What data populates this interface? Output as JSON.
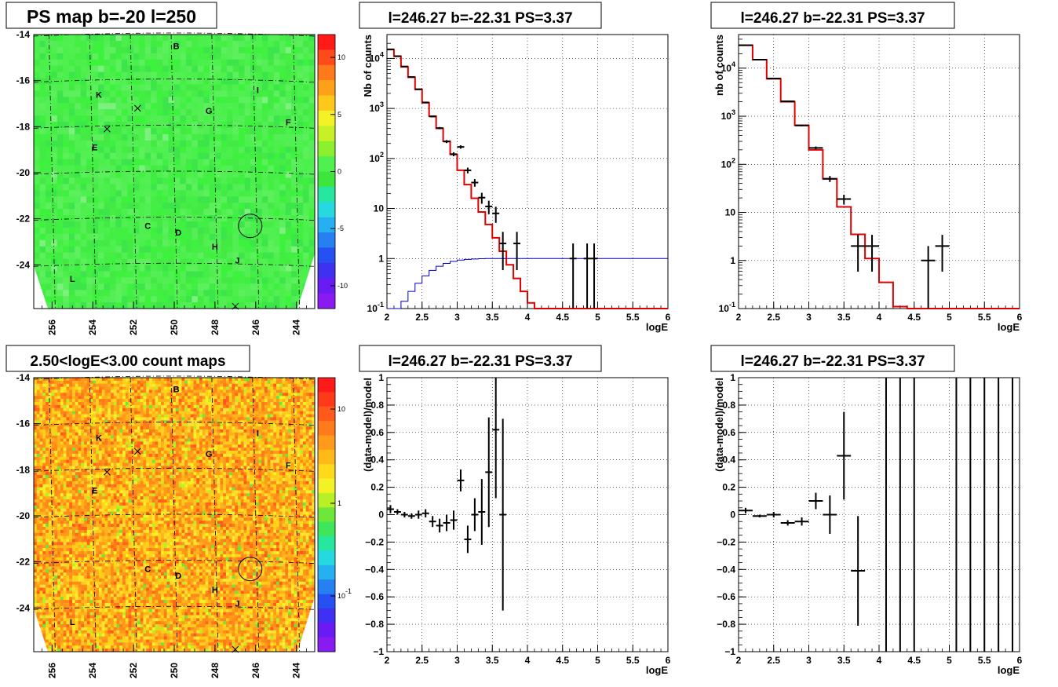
{
  "chart_data": [
    {
      "type": "heatmap",
      "title": "PS map b=-20 l=250",
      "xlabel": "",
      "ylabel": "",
      "xlim": [
        256.9,
        243.1
      ],
      "ylim": [
        -25.9,
        -14.0
      ],
      "x_ticks": [
        "256",
        "254",
        "252",
        "250",
        "248",
        "246",
        "244"
      ],
      "y_ticks": [
        "-14",
        "-16",
        "-18",
        "-20",
        "-22",
        "-24"
      ],
      "colorbar_ticks": [
        "10",
        "5",
        "0",
        "-5",
        "-10"
      ],
      "colorbar_range": [
        -12,
        12
      ],
      "dominant_value": 0,
      "sources": [
        {
          "name": "B",
          "l": 249.9,
          "b": -14.5
        },
        {
          "name": "I",
          "l": 245.9,
          "b": -16.4
        },
        {
          "name": "K",
          "l": 253.7,
          "b": -16.6
        },
        {
          "name": "G",
          "l": 248.3,
          "b": -17.3
        },
        {
          "name": "F",
          "l": 244.4,
          "b": -17.8
        },
        {
          "name": "E",
          "l": 253.9,
          "b": -18.9
        },
        {
          "name": "C",
          "l": 251.3,
          "b": -22.3
        },
        {
          "name": "D",
          "l": 249.8,
          "b": -22.6
        },
        {
          "name": "H",
          "l": 248.0,
          "b": -23.2
        },
        {
          "name": "J",
          "l": 246.9,
          "b": -23.8
        },
        {
          "name": "L",
          "l": 255.0,
          "b": -24.6
        }
      ],
      "crosses": [
        {
          "l": 253.3,
          "b": -18.1
        },
        {
          "l": 251.8,
          "b": -17.2
        },
        {
          "l": 247.0,
          "b": -25.8
        }
      ],
      "circle": {
        "l": 246.27,
        "b": -22.31
      }
    },
    {
      "type": "line",
      "title": "l=246.27 b=-22.31 PS=3.37",
      "xlabel": "logE",
      "ylabel": "Nb of counts",
      "yscale": "log",
      "xlim": [
        2,
        6
      ],
      "ylim": [
        0.1,
        30000
      ],
      "x_ticks": [
        "2",
        "2.5",
        "3",
        "3.5",
        "4",
        "4.5",
        "5",
        "5.5",
        "6"
      ],
      "y_ticks": [
        "10^-1",
        "1",
        "10",
        "10^2",
        "10^3",
        "10^4"
      ],
      "grid": true,
      "series": [
        {
          "color": "#e00000",
          "edges": [
            2,
            2.1,
            2.2,
            2.3,
            2.4,
            2.5,
            2.6,
            2.7,
            2.8,
            2.9,
            3,
            3.1,
            3.2,
            3.3,
            3.4,
            3.5,
            3.6,
            3.7,
            3.8,
            3.9,
            4,
            4.1,
            4.2,
            4.3,
            4.4,
            4.5,
            4.6,
            4.7,
            4.8,
            4.9,
            5,
            5.1,
            5.2,
            5.3,
            5.4,
            5.5,
            5.6,
            5.7,
            5.8,
            5.9,
            6
          ],
          "values": [
            15000,
            11000,
            6800,
            4200,
            2400,
            1300,
            700,
            400,
            220,
            120,
            58,
            30,
            16,
            8.5,
            4.8,
            2.6,
            1.4,
            0.75,
            0.4,
            0.22,
            0.13,
            0.1,
            0.1,
            0.1,
            0.1,
            0.1,
            0.1,
            0.1,
            0.1,
            0.1,
            0.1,
            0.1,
            0.1,
            0.1,
            0.1,
            0.1,
            0.1,
            0.1,
            0.1,
            0.1
          ]
        },
        {
          "color": "#0000cc",
          "edges": [
            2,
            2.1,
            2.2,
            2.3,
            2.4,
            2.5,
            2.6,
            2.7,
            2.8,
            2.9,
            3,
            3.1,
            3.2,
            3.3,
            3.4,
            3.5,
            3.6,
            3.7,
            3.8,
            3.9,
            4,
            4.1,
            4.2,
            4.3,
            4.4,
            4.5,
            4.6,
            4.7,
            4.8,
            4.9,
            5,
            5.1,
            5.2,
            5.3,
            5.4,
            5.5,
            5.6,
            5.7,
            5.8,
            5.9,
            6
          ],
          "values": [
            0.06,
            0.08,
            0.14,
            0.22,
            0.32,
            0.45,
            0.58,
            0.7,
            0.8,
            0.88,
            0.93,
            0.96,
            0.98,
            0.99,
            1,
            1,
            1,
            1,
            1,
            1,
            1,
            1,
            1,
            1,
            1,
            1,
            1,
            1,
            1,
            1,
            1,
            1,
            1,
            1,
            1,
            1,
            1,
            1,
            1,
            1
          ]
        },
        {
          "color": "#000000",
          "kind": "points",
          "x": [
            2.05,
            2.15,
            2.25,
            2.35,
            2.45,
            2.55,
            2.65,
            2.75,
            2.85,
            2.95,
            3.05,
            3.15,
            3.25,
            3.35,
            3.45,
            3.55,
            3.65,
            3.85,
            4.65,
            4.85,
            4.95
          ],
          "y": [
            15200,
            11100,
            6900,
            4250,
            2420,
            1320,
            690,
            405,
            218,
            122,
            170,
            58,
            33,
            16.5,
            11,
            8,
            2,
            2,
            1,
            1,
            1
          ],
          "xerr": 0.05
        }
      ]
    },
    {
      "type": "line",
      "title": "l=246.27 b=-22.31 PS=3.37",
      "xlabel": "logE",
      "ylabel": "nb of counts",
      "yscale": "log",
      "xlim": [
        2,
        6
      ],
      "ylim": [
        0.1,
        50000
      ],
      "x_ticks": [
        "2",
        "2.5",
        "3",
        "3.5",
        "4",
        "4.5",
        "5",
        "5.5",
        "6"
      ],
      "y_ticks": [
        "10^-1",
        "1",
        "10",
        "10^2",
        "10^3",
        "10^4"
      ],
      "grid": true,
      "series": [
        {
          "color": "#e00000",
          "edges": [
            2,
            2.2,
            2.4,
            2.6,
            2.8,
            3,
            3.2,
            3.4,
            3.6,
            3.8,
            4,
            4.2,
            4.4,
            4.6,
            4.8,
            5,
            5.2,
            5.4,
            5.6,
            5.8,
            6
          ],
          "values": [
            30000,
            15000,
            6000,
            2000,
            650,
            200,
            50,
            13,
            3.5,
            1.1,
            0.35,
            0.11,
            0.1,
            0.1,
            0.1,
            0.1,
            0.1,
            0.1,
            0.1,
            0.1
          ]
        },
        {
          "color": "#000000",
          "kind": "points",
          "x": [
            2.1,
            2.3,
            2.5,
            2.7,
            2.9,
            3.1,
            3.3,
            3.5,
            3.7,
            3.9,
            4.7,
            4.9
          ],
          "y": [
            30000,
            15000,
            6100,
            2050,
            640,
            220,
            50,
            19,
            2,
            2,
            1,
            2
          ],
          "xerr": 0.1
        }
      ]
    },
    {
      "type": "scatter",
      "title": "2.50<logE<3.00 count maps",
      "xlabel": "",
      "ylabel": "",
      "xlim": [
        256.9,
        243.1
      ],
      "ylim": [
        -25.9,
        -14.0
      ],
      "x_ticks": [
        "256",
        "254",
        "252",
        "250",
        "248",
        "246",
        "244"
      ],
      "y_ticks": [
        "-14",
        "-16",
        "-18",
        "-20",
        "-22",
        "-24"
      ],
      "colorbar_ticks": [
        "10",
        "1",
        "10^-1"
      ],
      "colorbar_scale": "log"
    },
    {
      "type": "scatter",
      "title": "l=246.27 b=-22.31 PS=3.37",
      "xlabel": "logE",
      "ylabel": "(data-model)/model",
      "xlim": [
        2,
        6
      ],
      "ylim": [
        -1,
        1
      ],
      "x_ticks": [
        "2",
        "2.5",
        "3",
        "3.5",
        "4",
        "4.5",
        "5",
        "5.5",
        "6"
      ],
      "y_ticks": [
        "−1",
        "−0.8",
        "−0.6",
        "−0.4",
        "−0.2",
        "0",
        "0.2",
        "0.4",
        "0.6",
        "0.8",
        "1"
      ],
      "grid": true,
      "x": [
        2.05,
        2.15,
        2.25,
        2.35,
        2.45,
        2.55,
        2.65,
        2.75,
        2.85,
        2.95,
        3.05,
        3.15,
        3.25,
        3.35,
        3.45,
        3.55,
        3.65
      ],
      "y": [
        0.04,
        0.02,
        0,
        -0.01,
        0,
        0.01,
        -0.05,
        -0.08,
        -0.06,
        -0.04,
        0.25,
        -0.18,
        0,
        0.02,
        0.31,
        0.62,
        0
      ],
      "yerr": [
        0.03,
        0.02,
        0.02,
        0.02,
        0.03,
        0.03,
        0.04,
        0.05,
        0.06,
        0.07,
        0.08,
        0.1,
        0.12,
        0.24,
        0.4,
        0.5,
        0.7
      ],
      "xerr": 0.05
    },
    {
      "type": "scatter",
      "title": "l=246.27 b=-22.31 PS=3.37",
      "xlabel": "logE",
      "ylabel": "(data-model)/model",
      "xlim": [
        2,
        6
      ],
      "ylim": [
        -1,
        1
      ],
      "x_ticks": [
        "2",
        "2.5",
        "3",
        "3.5",
        "4",
        "4.5",
        "5",
        "5.5",
        "6"
      ],
      "y_ticks": [
        "−1",
        "−0.8",
        "−0.6",
        "−0.4",
        "−0.2",
        "0",
        "0.2",
        "0.4",
        "0.6",
        "0.8",
        "1"
      ],
      "grid": true,
      "x": [
        2.1,
        2.3,
        2.5,
        2.7,
        2.9,
        3.1,
        3.3,
        3.5,
        3.7
      ],
      "y": [
        0.03,
        -0.01,
        0,
        -0.06,
        -0.05,
        0.1,
        0,
        0.43,
        -0.41
      ],
      "yerr": [
        0.02,
        0.01,
        0.02,
        0.02,
        0.03,
        0.06,
        0.14,
        0.32,
        0.4
      ],
      "xerr": 0.1,
      "bars_full_range_x": [
        4.1,
        4.3,
        4.5,
        5.1,
        5.3,
        5.5,
        5.7,
        5.9
      ]
    }
  ]
}
